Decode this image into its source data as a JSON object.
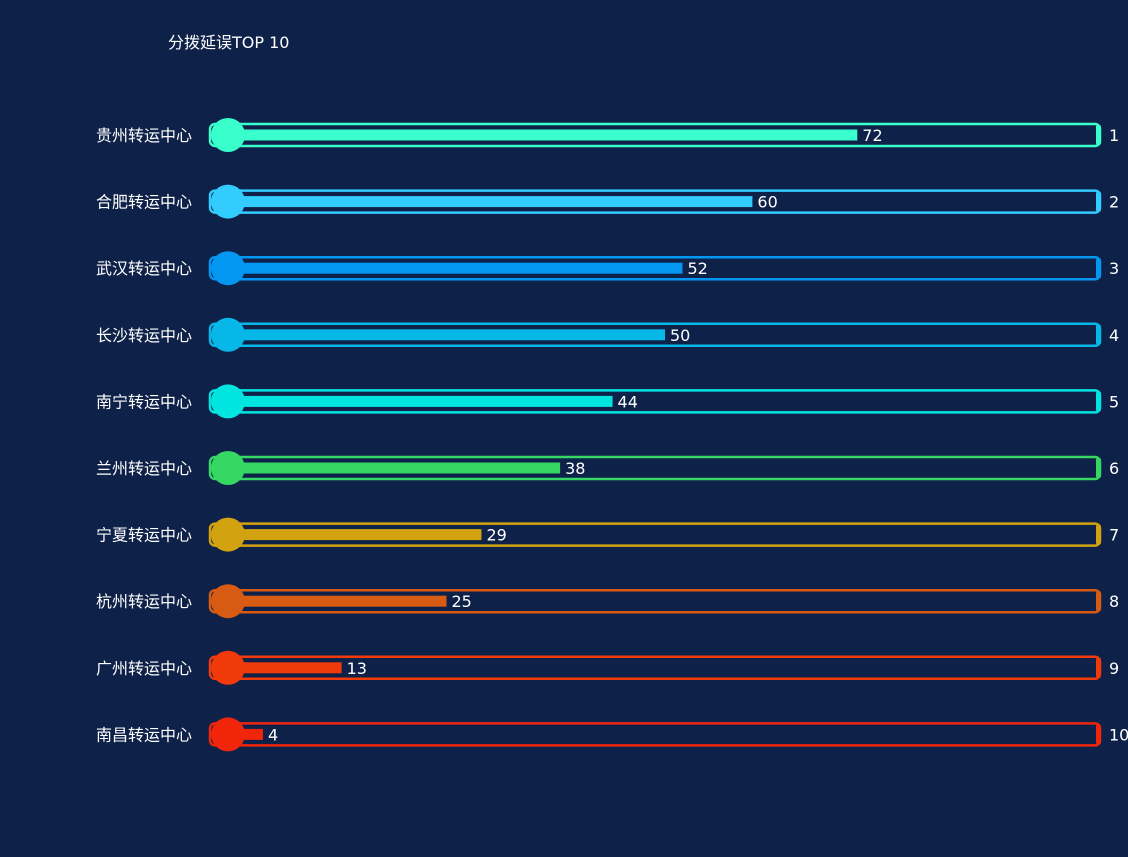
{
  "chart_data": {
    "type": "bar",
    "title": "分拨延误TOP 10",
    "categories": [
      "贵州转运中心",
      "合肥转运中心",
      "武汉转运中心",
      "长沙转运中心",
      "南宁转运中心",
      "兰州转运中心",
      "宁夏转运中心",
      "杭州转运中心",
      "广州转运中心",
      "南昌转运中心"
    ],
    "values": [
      72,
      60,
      52,
      50,
      44,
      38,
      29,
      25,
      13,
      4
    ],
    "ranks": [
      "1",
      "2",
      "3",
      "4",
      "5",
      "6",
      "7",
      "8",
      "9",
      "10"
    ],
    "colors": [
      "#39ffcc",
      "#33ccff",
      "#0497f2",
      "#06b7e8",
      "#00e5e0",
      "#35d863",
      "#d3a210",
      "#d85b13",
      "#f03a0a",
      "#f0250a"
    ],
    "xlim": [
      0,
      100
    ],
    "grid": false,
    "legend": "none"
  },
  "background": "#0e2148"
}
